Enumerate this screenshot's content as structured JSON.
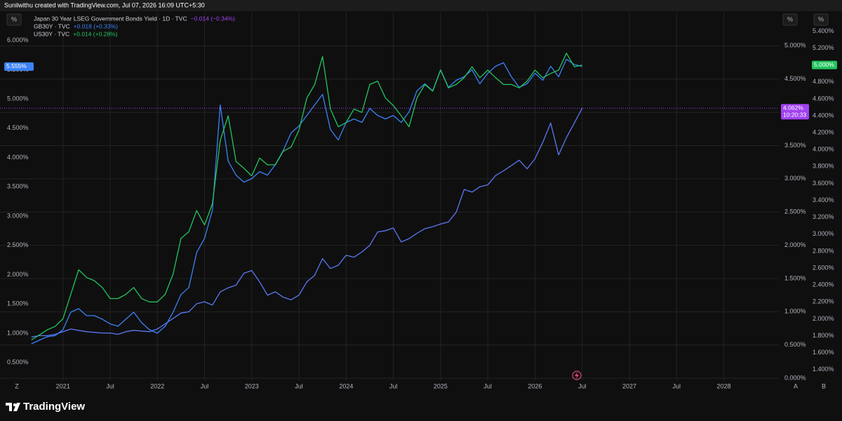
{
  "header": {
    "title": "Sunilwithu created with TradingView.com, Jul 07, 2026 16:09 UTC+5:30"
  },
  "footer": {
    "brand": "TradingView"
  },
  "chart_data": {
    "type": "line",
    "grid": true,
    "axis_unit": "%",
    "scale_buttons": [
      "Z",
      "A",
      "B"
    ],
    "x": [
      "2020-09",
      "2020-10",
      "2020-11",
      "2020-12",
      "2021-01",
      "2021-02",
      "2021-03",
      "2021-04",
      "2021-05",
      "2021-06",
      "2021-07",
      "2021-08",
      "2021-09",
      "2021-10",
      "2021-11",
      "2021-12",
      "2022-01",
      "2022-02",
      "2022-03",
      "2022-04",
      "2022-05",
      "2022-06",
      "2022-07",
      "2022-08",
      "2022-09",
      "2022-10",
      "2022-11",
      "2022-12",
      "2023-01",
      "2023-02",
      "2023-03",
      "2023-04",
      "2023-05",
      "2023-06",
      "2023-07",
      "2023-08",
      "2023-09",
      "2023-10",
      "2023-11",
      "2023-12",
      "2024-01",
      "2024-02",
      "2024-03",
      "2024-04",
      "2024-05",
      "2024-06",
      "2024-07",
      "2024-08",
      "2024-09",
      "2024-10",
      "2024-11",
      "2024-12",
      "2025-01",
      "2025-02",
      "2025-03",
      "2025-04",
      "2025-05",
      "2025-06",
      "2025-07",
      "2025-08",
      "2025-09",
      "2025-10",
      "2025-11",
      "2025-12",
      "2026-01",
      "2026-02",
      "2026-03",
      "2026-04",
      "2026-05",
      "2026-06",
      "2026-07"
    ],
    "xlim": [
      "2020-05",
      "2028-08"
    ],
    "xticks": [
      {
        "value": "2021-01",
        "label": "2021"
      },
      {
        "value": "2021-07",
        "label": "Jul"
      },
      {
        "value": "2022-01",
        "label": "2022"
      },
      {
        "value": "2022-07",
        "label": "Jul"
      },
      {
        "value": "2023-01",
        "label": "2023"
      },
      {
        "value": "2023-07",
        "label": "Jul"
      },
      {
        "value": "2024-01",
        "label": "2024"
      },
      {
        "value": "2024-07",
        "label": "Jul"
      },
      {
        "value": "2025-01",
        "label": "2025"
      },
      {
        "value": "2025-07",
        "label": "Jul"
      },
      {
        "value": "2026-01",
        "label": "2026"
      },
      {
        "value": "2026-07",
        "label": "Jul"
      },
      {
        "value": "2027-01",
        "label": "2027"
      },
      {
        "value": "2027-07",
        "label": "Jul"
      },
      {
        "value": "2028-01",
        "label": "2028"
      }
    ],
    "ylim": [
      0.22,
      6.26
    ],
    "yticks": [
      {
        "value": 0.5,
        "label": "0.500%"
      },
      {
        "value": 1.0,
        "label": "1.000%"
      },
      {
        "value": 1.5,
        "label": "1.500%"
      },
      {
        "value": 2.0,
        "label": "2.000%"
      },
      {
        "value": 2.5,
        "label": "2.500%"
      },
      {
        "value": 3.0,
        "label": "3.000%"
      },
      {
        "value": 3.5,
        "label": "3.500%"
      },
      {
        "value": 4.0,
        "label": "4.000%"
      },
      {
        "value": 4.5,
        "label": "4.500%"
      },
      {
        "value": 5.0,
        "label": "5.000%"
      },
      {
        "value": 5.5,
        "label": "5.500%"
      },
      {
        "value": 6.0,
        "label": "6.000%"
      }
    ],
    "y2lim": [
      -0.01,
      5.31
    ],
    "y2ticks": [
      {
        "value": 0,
        "label": "0.000%"
      },
      {
        "value": 0.5,
        "label": "0.500%"
      },
      {
        "value": 1.0,
        "label": "1.000%"
      },
      {
        "value": 1.5,
        "label": "1.500%"
      },
      {
        "value": 2.0,
        "label": "2.000%"
      },
      {
        "value": 2.5,
        "label": "2.500%"
      },
      {
        "value": 3.0,
        "label": "3.000%"
      },
      {
        "value": 3.5,
        "label": "3.500%"
      },
      {
        "value": 4.0,
        "label": "4.000%"
      },
      {
        "value": 4.5,
        "label": "4.500%"
      },
      {
        "value": 5.0,
        "label": "5.000%"
      }
    ],
    "y3lim": [
      1.29,
      5.47
    ],
    "y3ticks": [
      {
        "value": 1.4,
        "label": "1.400%"
      },
      {
        "value": 1.6,
        "label": "1.600%"
      },
      {
        "value": 1.8,
        "label": "1.800%"
      },
      {
        "value": 2.0,
        "label": "2.000%"
      },
      {
        "value": 2.2,
        "label": "2.200%"
      },
      {
        "value": 2.4,
        "label": "2.400%"
      },
      {
        "value": 2.6,
        "label": "2.600%"
      },
      {
        "value": 2.8,
        "label": "2.800%"
      },
      {
        "value": 3.0,
        "label": "3.000%"
      },
      {
        "value": 3.2,
        "label": "3.200%"
      },
      {
        "value": 3.4,
        "label": "3.400%"
      },
      {
        "value": 3.6,
        "label": "3.600%"
      },
      {
        "value": 3.8,
        "label": "3.800%"
      },
      {
        "value": 4.0,
        "label": "4.000%"
      },
      {
        "value": 4.2,
        "label": "4.200%"
      },
      {
        "value": 4.4,
        "label": "4.400%"
      },
      {
        "value": 4.6,
        "label": "4.600%"
      },
      {
        "value": 4.8,
        "label": "4.800%"
      },
      {
        "value": 5.0,
        "label": "5.000%"
      },
      {
        "value": 5.2,
        "label": "5.200%"
      },
      {
        "value": 5.4,
        "label": "5.400%"
      }
    ],
    "series": [
      {
        "name": "Japan 30 Year LSEG Government Bonds Yield · 1D · TVC",
        "change": "−0.014 (−0.34%)",
        "color": "#5a78f2",
        "label_color": "#a242f0",
        "axis": "y2",
        "last_value": {
          "value": 4.062,
          "label": "4.062%"
        },
        "countdown": "10:20:33",
        "values": [
          0.62,
          0.64,
          0.64,
          0.66,
          0.7,
          0.74,
          0.72,
          0.7,
          0.69,
          0.68,
          0.68,
          0.66,
          0.7,
          0.72,
          0.71,
          0.7,
          0.74,
          0.82,
          0.9,
          0.98,
          1.0,
          1.12,
          1.15,
          1.1,
          1.3,
          1.36,
          1.4,
          1.58,
          1.62,
          1.45,
          1.25,
          1.3,
          1.22,
          1.18,
          1.25,
          1.45,
          1.55,
          1.8,
          1.65,
          1.7,
          1.85,
          1.82,
          1.9,
          2.0,
          2.2,
          2.22,
          2.26,
          2.05,
          2.1,
          2.18,
          2.25,
          2.28,
          2.32,
          2.35,
          2.5,
          2.84,
          2.8,
          2.88,
          2.91,
          3.05,
          3.12,
          3.2,
          3.28,
          3.15,
          3.3,
          3.55,
          3.84,
          3.36,
          3.62,
          3.84,
          4.062
        ]
      },
      {
        "name": "GB30Y · TVC",
        "change": "+0.018 (+0.33%)",
        "color": "#3b82f6",
        "label_color": "#3b82f6",
        "axis": "y",
        "last_value": {
          "value": 5.555,
          "label": "5.555%"
        },
        "values": [
          0.82,
          0.88,
          0.94,
          0.96,
          1.06,
          1.36,
          1.42,
          1.3,
          1.3,
          1.24,
          1.16,
          1.12,
          1.24,
          1.36,
          1.18,
          1.06,
          1.0,
          1.12,
          1.36,
          1.66,
          1.78,
          2.38,
          2.62,
          3.1,
          4.9,
          3.94,
          3.7,
          3.58,
          3.64,
          3.76,
          3.7,
          3.88,
          4.12,
          4.42,
          4.54,
          4.72,
          4.9,
          5.08,
          4.48,
          4.3,
          4.6,
          4.66,
          4.6,
          4.84,
          4.72,
          4.66,
          4.72,
          4.6,
          4.78,
          5.14,
          5.26,
          5.14,
          5.5,
          5.2,
          5.32,
          5.38,
          5.5,
          5.26,
          5.44,
          5.56,
          5.62,
          5.38,
          5.2,
          5.26,
          5.44,
          5.32,
          5.56,
          5.38,
          5.68,
          5.59,
          5.555
        ]
      },
      {
        "name": "US30Y · TVC",
        "change": "+0.014 (+0.28%)",
        "color": "#22c55e",
        "label_color": "#22c55e",
        "axis": "y3",
        "last_value": {
          "value": 5.0,
          "label": "5.000%"
        },
        "values": [
          1.75,
          1.81,
          1.87,
          1.91,
          2.0,
          2.29,
          2.58,
          2.49,
          2.45,
          2.37,
          2.24,
          2.24,
          2.29,
          2.37,
          2.24,
          2.2,
          2.2,
          2.29,
          2.53,
          2.95,
          3.03,
          3.28,
          3.11,
          3.36,
          4.11,
          4.4,
          3.86,
          3.78,
          3.69,
          3.9,
          3.82,
          3.82,
          3.98,
          4.03,
          4.23,
          4.61,
          4.77,
          5.1,
          4.48,
          4.27,
          4.32,
          4.48,
          4.44,
          4.77,
          4.81,
          4.61,
          4.52,
          4.4,
          4.27,
          4.61,
          4.77,
          4.69,
          4.94,
          4.73,
          4.77,
          4.85,
          4.98,
          4.85,
          4.94,
          4.85,
          4.77,
          4.77,
          4.73,
          4.81,
          4.94,
          4.85,
          4.9,
          4.94,
          5.14,
          4.98,
          5.0
        ]
      }
    ]
  }
}
